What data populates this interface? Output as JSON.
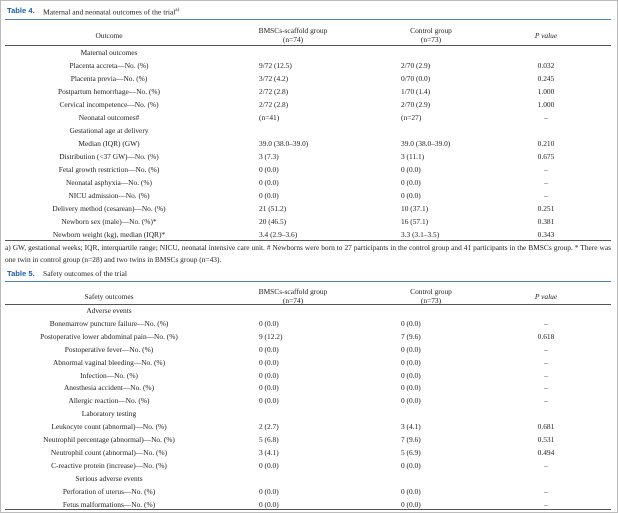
{
  "table4": {
    "label": "Table 4.",
    "title": "Maternal and neonatal outcomes of the trial",
    "title_note": "a)",
    "columns": [
      {
        "name": "Outcome"
      },
      {
        "name": "BMSCs-scaffold group",
        "n": "(n=74)"
      },
      {
        "name": "Control group",
        "n": "(n=73)"
      },
      {
        "name": "P value"
      }
    ],
    "rows": [
      [
        "Maternal outcomes"
      ],
      [
        "Placenta accreta—No. (%)",
        "9/72 (12.5)",
        "2/70 (2.9)",
        "0.032"
      ],
      [
        "Placenta previa—No. (%)",
        "3/72 (4.2)",
        "0/70 (0.0)",
        "0.245"
      ],
      [
        "Postpartum hemorrhage—No. (%)",
        "2/72 (2.8)",
        "1/70 (1.4)",
        "1.000"
      ],
      [
        "Cervical incompetence—No. (%)",
        "2/72 (2.8)",
        "2/70 (2.9)",
        "1.000"
      ],
      [
        "Neonatal outcomes#",
        "(n=41)",
        "(n=27)",
        "–"
      ],
      [
        "Gestational age at delivery"
      ],
      [
        "Median (IQR) (GW)",
        "39.0 (38.0–39.0)",
        "39.0 (38.0–39.0)",
        "0.210"
      ],
      [
        "Distribution (<37 GW)—No. (%)",
        "3 (7.3)",
        "3 (11.1)",
        "0.675"
      ],
      [
        "Fetal growth restriction—No. (%)",
        "0 (0.0)",
        "0 (0.0)",
        "–"
      ],
      [
        "Neonatal asphyxia—No. (%)",
        "0 (0.0)",
        "0 (0.0)",
        "–"
      ],
      [
        "NICU admission—No. (%)",
        "0 (0.0)",
        "0 (0.0)",
        "–"
      ],
      [
        "Delivery method (cesarean)—No. (%)",
        "21 (51.2)",
        "10 (37.1)",
        "0.251"
      ],
      [
        "Newborn sex (male)—No. (%)*",
        "20 (46.5)",
        "16 (57.1)",
        "0.381"
      ],
      [
        "Newborn weight (kg), median (IQR)*",
        "3.4 (2.9–3.6)",
        "3.3 (3.1–3.5)",
        "0.343"
      ]
    ],
    "footnote": "a) GW, gestational weeks; IQR, interquartile range; NICU, neonatal intensive care unit. # Newborns were born to 27 participants in the control group and 41 participants in the BMSCs group. * There was one twin in control group (n=28) and two twins in BMSCs group (n=43)."
  },
  "table5": {
    "label": "Table 5.",
    "title": "Safety outcomes of the trial",
    "columns": [
      {
        "name": "Safety outcomes"
      },
      {
        "name": "BMSCs-scaffold group",
        "n": "(n=74)"
      },
      {
        "name": "Control group",
        "n": "(n=73)"
      },
      {
        "name": "P value"
      }
    ],
    "rows": [
      [
        "Adverse events"
      ],
      [
        "Bonemarrow puncture failure—No. (%)",
        "0 (0.0)",
        "0 (0.0)",
        "–"
      ],
      [
        "Postoperative lower abdominal pain—No. (%)",
        "9 (12.2)",
        "7 (9.6)",
        "0.618"
      ],
      [
        "Postoperative fever—No. (%)",
        "0 (0.0)",
        "0 (0.0)",
        "–"
      ],
      [
        "Abnormal vaginal bleeding—No. (%)",
        "0 (0.0)",
        "0 (0.0)",
        "–"
      ],
      [
        "Infection—No. (%)",
        "0 (0.0)",
        "0 (0.0)",
        "–"
      ],
      [
        "Anesthesia accident—No. (%)",
        "0 (0.0)",
        "0 (0.0)",
        "–"
      ],
      [
        "Allergic reaction—No. (%)",
        "0 (0.0)",
        "0 (0.0)",
        "–"
      ],
      [
        "Laboratory testing"
      ],
      [
        "Leukocyte count (abnormal)—No. (%)",
        "2 (2.7)",
        "3 (4.1)",
        "0.681"
      ],
      [
        "Neutrophil percentage (abnormal)—No. (%)",
        "5 (6.8)",
        "7 (9.6)",
        "0.531"
      ],
      [
        "Neutrophil count (abnormal)—No. (%)",
        "3 (4.1)",
        "5 (6.9)",
        "0.494"
      ],
      [
        "C-reactive protein (increase)—No. (%)",
        "0 (0.0)",
        "0 (0.0)",
        "–"
      ],
      [
        "Serious adverse events"
      ],
      [
        "Perforation of uterus—No. (%)",
        "0 (0.0)",
        "0 (0.0)",
        "–"
      ],
      [
        "Fetus malformations—No. (%)",
        "0 (0.0)",
        "0 (0.0)",
        "–"
      ]
    ]
  }
}
